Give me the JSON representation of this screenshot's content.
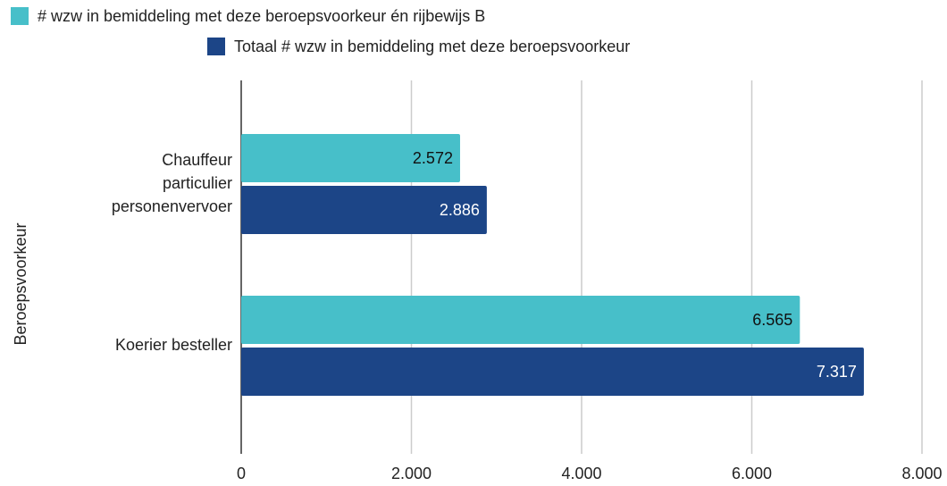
{
  "chart_data": {
    "type": "hbar",
    "y_axis_label": "Beroepsvoorkeur",
    "categories": [
      "Chauffeur particulier personenvervoer",
      "Koerier besteller"
    ],
    "series": [
      {
        "name": "# wzw in bemiddeling met deze beroepsvoorkeur én rijbewijs  B",
        "color": "#47bfc9",
        "label_color": "#111111",
        "values": [
          2572,
          6565
        ],
        "value_labels": [
          "2.572",
          "6.565"
        ]
      },
      {
        "name": "Totaal # wzw in bemiddeling met deze beroepsvoorkeur",
        "color": "#1c4587",
        "label_color": "#ffffff",
        "values": [
          2886,
          7317
        ],
        "value_labels": [
          "2.886",
          "7.317"
        ]
      }
    ],
    "xlim": [
      0,
      8000
    ],
    "xticks": [
      0,
      {
        "value": 2000,
        "label": "2.000"
      },
      {
        "value": 4000,
        "label": "4.000"
      },
      {
        "value": 6000,
        "label": "6.000"
      },
      {
        "value": 8000,
        "label": "8.000"
      }
    ],
    "grid": true
  }
}
